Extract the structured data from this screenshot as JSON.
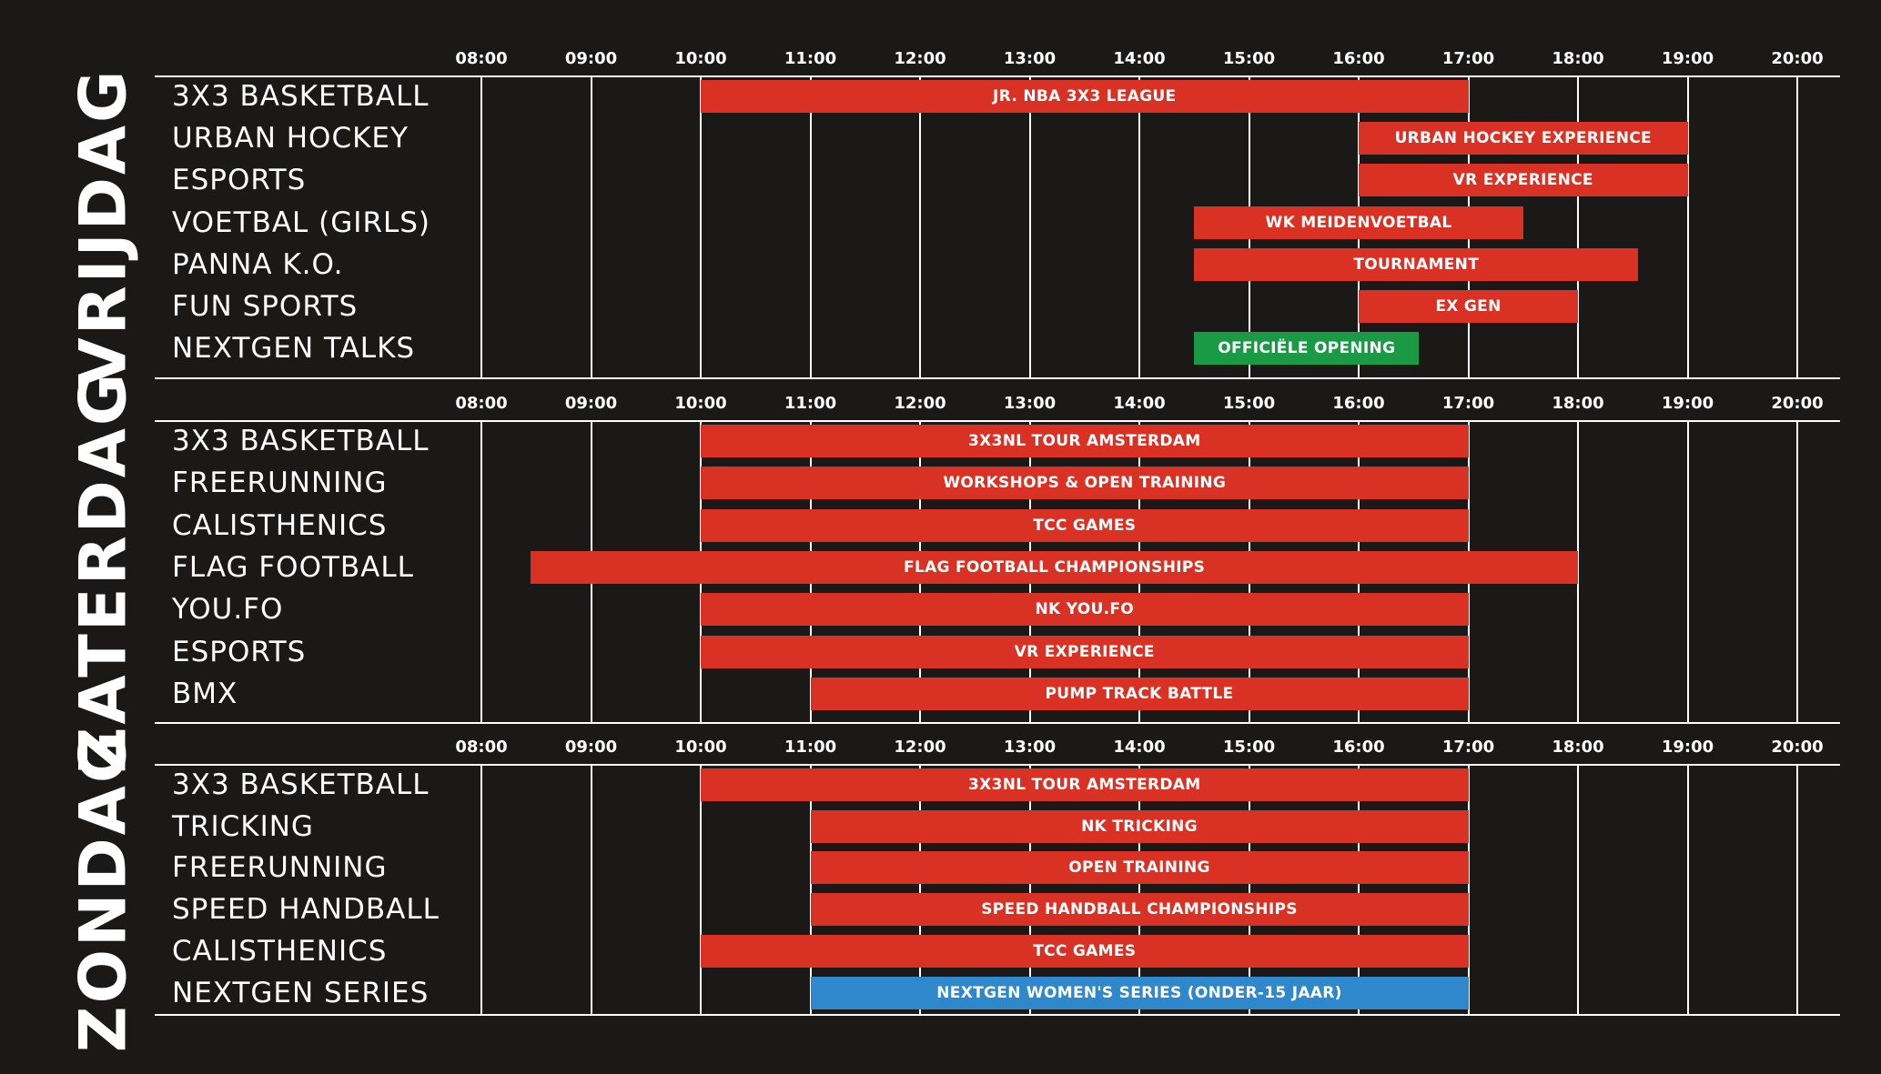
{
  "colors": {
    "background": "#1b1918",
    "text": "#ffffff",
    "gridline": "#ffffff",
    "event": "#d93225",
    "opening": "#1a9a45",
    "series": "#2f88cc"
  },
  "hours": [
    "08:00",
    "09:00",
    "10:00",
    "11:00",
    "12:00",
    "13:00",
    "14:00",
    "15:00",
    "16:00",
    "17:00",
    "18:00",
    "19:00",
    "20:00"
  ],
  "days": [
    {
      "name": "VRIJDAG",
      "rows": [
        {
          "label": "3X3 BASKETBALL",
          "events": [
            {
              "title": "JR. NBA 3X3 LEAGUE",
              "start": 10.0,
              "end": 17.0,
              "color": "event"
            }
          ]
        },
        {
          "label": "URBAN HOCKEY",
          "events": [
            {
              "title": "URBAN HOCKEY EXPERIENCE",
              "start": 16.0,
              "end": 19.0,
              "color": "event"
            }
          ]
        },
        {
          "label": "ESPORTS",
          "events": [
            {
              "title": "VR EXPERIENCE",
              "start": 16.0,
              "end": 19.0,
              "color": "event"
            }
          ]
        },
        {
          "label": "VOETBAL (GIRLS)",
          "events": [
            {
              "title": "WK MEIDENVOETBAL",
              "start": 14.5,
              "end": 17.5,
              "color": "event"
            }
          ]
        },
        {
          "label": "PANNA K.O.",
          "events": [
            {
              "title": "TOURNAMENT",
              "start": 14.5,
              "end": 18.55,
              "color": "event"
            }
          ]
        },
        {
          "label": "FUN SPORTS",
          "events": [
            {
              "title": "EX GEN",
              "start": 16.0,
              "end": 18.0,
              "color": "event"
            }
          ]
        },
        {
          "label": "NEXTGEN TALKS",
          "events": [
            {
              "title": "OFFICIËLE OPENING",
              "start": 14.5,
              "end": 16.55,
              "color": "opening"
            }
          ]
        }
      ]
    },
    {
      "name": "ZATERDAG",
      "rows": [
        {
          "label": "3X3 BASKETBALL",
          "events": [
            {
              "title": "3X3NL TOUR AMSTERDAM",
              "start": 10.0,
              "end": 17.0,
              "color": "event"
            }
          ]
        },
        {
          "label": "FREERUNNING",
          "events": [
            {
              "title": "WORKSHOPS & OPEN TRAINING",
              "start": 10.0,
              "end": 17.0,
              "color": "event"
            }
          ]
        },
        {
          "label": "CALISTHENICS",
          "events": [
            {
              "title": "TCC GAMES",
              "start": 10.0,
              "end": 17.0,
              "color": "event"
            }
          ]
        },
        {
          "label": "FLAG FOOTBALL",
          "events": [
            {
              "title": "FLAG FOOTBALL CHAMPIONSHIPS",
              "start": 8.45,
              "end": 18.0,
              "color": "event"
            }
          ]
        },
        {
          "label": "YOU.FO",
          "events": [
            {
              "title": "NK YOU.FO",
              "start": 10.0,
              "end": 17.0,
              "color": "event"
            }
          ]
        },
        {
          "label": "ESPORTS",
          "events": [
            {
              "title": "VR EXPERIENCE",
              "start": 10.0,
              "end": 17.0,
              "color": "event"
            }
          ]
        },
        {
          "label": "BMX",
          "events": [
            {
              "title": "PUMP TRACK BATTLE",
              "start": 11.0,
              "end": 17.0,
              "color": "event"
            }
          ]
        }
      ]
    },
    {
      "name": "ZONDAG",
      "rows": [
        {
          "label": "3X3 BASKETBALL",
          "events": [
            {
              "title": "3X3NL TOUR AMSTERDAM",
              "start": 10.0,
              "end": 17.0,
              "color": "event"
            }
          ]
        },
        {
          "label": "TRICKING",
          "events": [
            {
              "title": "NK TRICKING",
              "start": 11.0,
              "end": 17.0,
              "color": "event"
            }
          ]
        },
        {
          "label": "FREERUNNING",
          "events": [
            {
              "title": "OPEN TRAINING",
              "start": 11.0,
              "end": 17.0,
              "color": "event"
            }
          ]
        },
        {
          "label": "SPEED HANDBALL",
          "events": [
            {
              "title": "SPEED HANDBALL CHAMPIONSHIPS",
              "start": 11.0,
              "end": 17.0,
              "color": "event"
            }
          ]
        },
        {
          "label": "CALISTHENICS",
          "events": [
            {
              "title": "TCC GAMES",
              "start": 10.0,
              "end": 17.0,
              "color": "event"
            }
          ]
        },
        {
          "label": "NEXTGEN SERIES",
          "events": [
            {
              "title": "NEXTGEN WOMEN'S SERIES (ONDER-15 JAAR)",
              "start": 11.0,
              "end": 17.0,
              "color": "series"
            }
          ]
        }
      ]
    }
  ]
}
